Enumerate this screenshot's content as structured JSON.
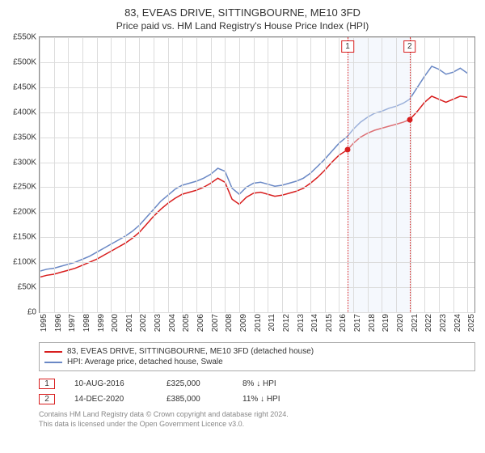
{
  "title": "83, EVEAS DRIVE, SITTINGBOURNE, ME10 3FD",
  "subtitle": "Price paid vs. HM Land Registry's House Price Index (HPI)",
  "chart": {
    "type": "line",
    "background_color": "#ffffff",
    "grid_color": "#dcdcdc",
    "border_color": "#888888",
    "y": {
      "min": 0,
      "max": 550000,
      "ticks": [
        0,
        50000,
        100000,
        150000,
        200000,
        250000,
        300000,
        350000,
        400000,
        450000,
        500000,
        550000
      ],
      "labels": [
        "£0",
        "£50K",
        "£100K",
        "£150K",
        "£200K",
        "£250K",
        "£300K",
        "£350K",
        "£400K",
        "£450K",
        "£500K",
        "£550K"
      ],
      "label_fontsize": 10
    },
    "x": {
      "min": 1995,
      "max": 2025.5,
      "ticks": [
        1995,
        1996,
        1997,
        1998,
        1999,
        2000,
        2001,
        2002,
        2003,
        2004,
        2005,
        2006,
        2007,
        2008,
        2009,
        2010,
        2011,
        2012,
        2013,
        2014,
        2015,
        2016,
        2017,
        2018,
        2019,
        2020,
        2021,
        2022,
        2023,
        2024,
        2025
      ],
      "label_fontsize": 10,
      "rotation": -90
    },
    "series": [
      {
        "name": "price_paid",
        "label": "83, EVEAS DRIVE, SITTINGBOURNE, ME10 3FD (detached house)",
        "color": "#d81e1e",
        "line_width": 1.5,
        "points": [
          [
            1995,
            70000
          ],
          [
            1995.5,
            74000
          ],
          [
            1996,
            76000
          ],
          [
            1996.5,
            80000
          ],
          [
            1997,
            84000
          ],
          [
            1997.5,
            88000
          ],
          [
            1998,
            94000
          ],
          [
            1998.5,
            100000
          ],
          [
            1999,
            106000
          ],
          [
            1999.5,
            114000
          ],
          [
            2000,
            122000
          ],
          [
            2000.5,
            130000
          ],
          [
            2001,
            138000
          ],
          [
            2001.5,
            148000
          ],
          [
            2002,
            160000
          ],
          [
            2002.5,
            176000
          ],
          [
            2003,
            192000
          ],
          [
            2003.5,
            206000
          ],
          [
            2004,
            218000
          ],
          [
            2004.5,
            228000
          ],
          [
            2005,
            236000
          ],
          [
            2005.5,
            240000
          ],
          [
            2006,
            244000
          ],
          [
            2006.5,
            250000
          ],
          [
            2007,
            258000
          ],
          [
            2007.5,
            268000
          ],
          [
            2008,
            260000
          ],
          [
            2008.5,
            226000
          ],
          [
            2009,
            216000
          ],
          [
            2009.5,
            230000
          ],
          [
            2010,
            238000
          ],
          [
            2010.5,
            240000
          ],
          [
            2011,
            236000
          ],
          [
            2011.5,
            232000
          ],
          [
            2012,
            234000
          ],
          [
            2012.5,
            238000
          ],
          [
            2013,
            242000
          ],
          [
            2013.5,
            248000
          ],
          [
            2014,
            258000
          ],
          [
            2014.5,
            270000
          ],
          [
            2015,
            284000
          ],
          [
            2015.5,
            300000
          ],
          [
            2016,
            314000
          ],
          [
            2016.6,
            325000
          ],
          [
            2017,
            338000
          ],
          [
            2017.5,
            350000
          ],
          [
            2018,
            358000
          ],
          [
            2018.5,
            364000
          ],
          [
            2019,
            368000
          ],
          [
            2019.5,
            372000
          ],
          [
            2020,
            376000
          ],
          [
            2020.5,
            380000
          ],
          [
            2020.95,
            385000
          ],
          [
            2021.5,
            402000
          ],
          [
            2022,
            420000
          ],
          [
            2022.5,
            432000
          ],
          [
            2023,
            426000
          ],
          [
            2023.5,
            420000
          ],
          [
            2024,
            426000
          ],
          [
            2024.5,
            432000
          ],
          [
            2025,
            430000
          ]
        ]
      },
      {
        "name": "hpi",
        "label": "HPI: Average price, detached house, Swale",
        "color": "#6a88c5",
        "line_width": 1.5,
        "points": [
          [
            1995,
            82000
          ],
          [
            1995.5,
            86000
          ],
          [
            1996,
            88000
          ],
          [
            1996.5,
            92000
          ],
          [
            1997,
            96000
          ],
          [
            1997.5,
            100000
          ],
          [
            1998,
            106000
          ],
          [
            1998.5,
            112000
          ],
          [
            1999,
            120000
          ],
          [
            1999.5,
            128000
          ],
          [
            2000,
            136000
          ],
          [
            2000.5,
            144000
          ],
          [
            2001,
            152000
          ],
          [
            2001.5,
            162000
          ],
          [
            2002,
            174000
          ],
          [
            2002.5,
            190000
          ],
          [
            2003,
            206000
          ],
          [
            2003.5,
            222000
          ],
          [
            2004,
            234000
          ],
          [
            2004.5,
            246000
          ],
          [
            2005,
            254000
          ],
          [
            2005.5,
            258000
          ],
          [
            2006,
            262000
          ],
          [
            2006.5,
            268000
          ],
          [
            2007,
            276000
          ],
          [
            2007.5,
            288000
          ],
          [
            2008,
            282000
          ],
          [
            2008.5,
            248000
          ],
          [
            2009,
            236000
          ],
          [
            2009.5,
            250000
          ],
          [
            2010,
            258000
          ],
          [
            2010.5,
            260000
          ],
          [
            2011,
            256000
          ],
          [
            2011.5,
            252000
          ],
          [
            2012,
            254000
          ],
          [
            2012.5,
            258000
          ],
          [
            2013,
            262000
          ],
          [
            2013.5,
            268000
          ],
          [
            2014,
            278000
          ],
          [
            2014.5,
            292000
          ],
          [
            2015,
            306000
          ],
          [
            2015.5,
            322000
          ],
          [
            2016,
            338000
          ],
          [
            2016.6,
            352000
          ],
          [
            2017,
            366000
          ],
          [
            2017.5,
            380000
          ],
          [
            2018,
            390000
          ],
          [
            2018.5,
            398000
          ],
          [
            2019,
            402000
          ],
          [
            2019.5,
            408000
          ],
          [
            2020,
            412000
          ],
          [
            2020.5,
            418000
          ],
          [
            2020.95,
            426000
          ],
          [
            2021.5,
            450000
          ],
          [
            2022,
            472000
          ],
          [
            2022.5,
            492000
          ],
          [
            2023,
            486000
          ],
          [
            2023.5,
            476000
          ],
          [
            2024,
            480000
          ],
          [
            2024.5,
            488000
          ],
          [
            2025,
            478000
          ]
        ]
      }
    ],
    "sales": [
      {
        "num": "1",
        "year": 2016.6,
        "date": "10-AUG-2016",
        "price": "£325,000",
        "delta": "8% ↓ HPI",
        "marker_value": 325000,
        "box_color": "#d81e1e",
        "line_color": "#d81e1e"
      },
      {
        "num": "2",
        "year": 2020.95,
        "date": "14-DEC-2020",
        "price": "£385,000",
        "delta": "11% ↓ HPI",
        "marker_value": 385000,
        "box_color": "#d81e1e",
        "line_color": "#d81e1e"
      }
    ],
    "sale_band": {
      "from_year": 2016.6,
      "to_year": 2020.95,
      "fill": "#e6eefb"
    },
    "marker_color": "#d81e1e"
  },
  "legend": {
    "border_color": "#aaaaaa",
    "fontsize": 10
  },
  "attribution": {
    "line1": "Contains HM Land Registry data © Crown copyright and database right 2024.",
    "line2": "This data is licensed under the Open Government Licence v3.0."
  }
}
